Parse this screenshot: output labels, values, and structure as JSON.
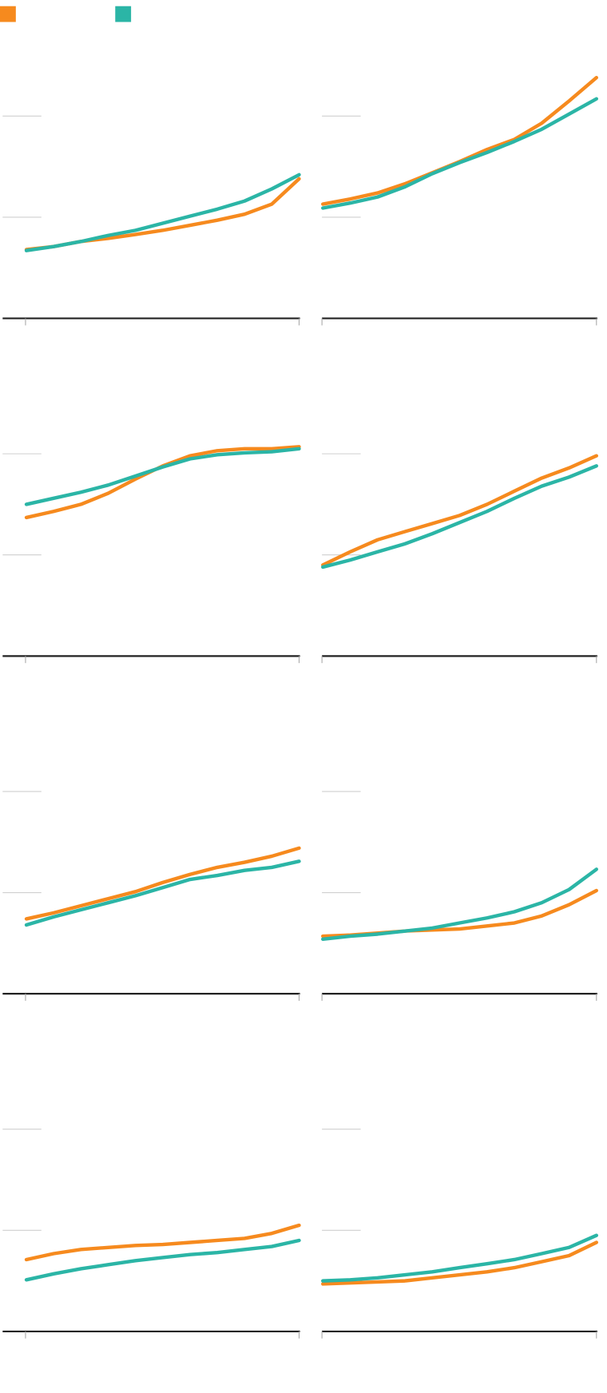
{
  "chart_data": [
    {
      "type": "line",
      "categories": [
        null,
        null,
        null,
        null,
        null,
        null,
        null,
        null,
        null,
        null,
        null
      ],
      "ylim": [
        0,
        300
      ],
      "yticks": [
        100,
        200
      ],
      "grid": true,
      "series": [
        {
          "color": "#f68a1e",
          "values": [
            68,
            71,
            76,
            79,
            83,
            87,
            92,
            97,
            103,
            113,
            138
          ]
        },
        {
          "color": "#2bb5a6",
          "values": [
            67,
            71,
            76,
            82,
            87,
            94,
            101,
            108,
            116,
            128,
            142
          ]
        }
      ]
    },
    {
      "type": "line",
      "categories": [
        null,
        null,
        null,
        null,
        null,
        null,
        null,
        null,
        null,
        null,
        null
      ],
      "ylim": [
        0,
        300
      ],
      "yticks": [
        100,
        200
      ],
      "grid": true,
      "series": [
        {
          "color": "#f68a1e",
          "values": [
            113,
            118,
            124,
            133,
            144,
            155,
            167,
            177,
            193,
            215,
            238
          ]
        },
        {
          "color": "#2bb5a6",
          "values": [
            109,
            114,
            120,
            130,
            143,
            154,
            164,
            175,
            187,
            202,
            217
          ]
        }
      ]
    },
    {
      "type": "line",
      "categories": [
        null,
        null,
        null,
        null,
        null,
        null,
        null,
        null,
        null,
        null,
        null
      ],
      "ylim": [
        0,
        300
      ],
      "yticks": [
        100,
        200
      ],
      "grid": true,
      "series": [
        {
          "color": "#f68a1e",
          "values": [
            137,
            143,
            150,
            161,
            175,
            188,
            198,
            203,
            205,
            205,
            207
          ]
        },
        {
          "color": "#2bb5a6",
          "values": [
            150,
            156,
            162,
            169,
            178,
            187,
            195,
            199,
            201,
            202,
            205
          ]
        }
      ]
    },
    {
      "type": "line",
      "categories": [
        null,
        null,
        null,
        null,
        null,
        null,
        null,
        null,
        null,
        null,
        null
      ],
      "ylim": [
        0,
        300
      ],
      "yticks": [
        100,
        200
      ],
      "grid": true,
      "series": [
        {
          "color": "#f68a1e",
          "values": [
            90,
            103,
            115,
            123,
            131,
            139,
            150,
            163,
            176,
            186,
            198
          ]
        },
        {
          "color": "#2bb5a6",
          "values": [
            88,
            95,
            103,
            111,
            121,
            132,
            143,
            156,
            168,
            177,
            188
          ]
        }
      ]
    },
    {
      "type": "line",
      "categories": [
        null,
        null,
        null,
        null,
        null,
        null,
        null,
        null,
        null,
        null,
        null
      ],
      "ylim": [
        0,
        300
      ],
      "yticks": [
        100,
        200
      ],
      "grid": true,
      "series": [
        {
          "color": "#f68a1e",
          "values": [
            74,
            80,
            87,
            94,
            101,
            110,
            118,
            125,
            130,
            136,
            144
          ]
        },
        {
          "color": "#2bb5a6",
          "values": [
            68,
            76,
            83,
            90,
            97,
            105,
            113,
            117,
            122,
            125,
            131
          ]
        }
      ]
    },
    {
      "type": "line",
      "categories": [
        null,
        null,
        null,
        null,
        null,
        null,
        null,
        null,
        null,
        null,
        null
      ],
      "ylim": [
        0,
        300
      ],
      "yticks": [
        100,
        200
      ],
      "grid": true,
      "series": [
        {
          "color": "#f68a1e",
          "values": [
            57,
            58,
            60,
            62,
            63,
            64,
            67,
            70,
            77,
            88,
            102
          ]
        },
        {
          "color": "#2bb5a6",
          "values": [
            54,
            57,
            59,
            62,
            65,
            70,
            75,
            81,
            90,
            103,
            123
          ]
        }
      ]
    },
    {
      "type": "line",
      "categories": [
        null,
        null,
        null,
        null,
        null,
        null,
        null,
        null,
        null,
        null,
        null
      ],
      "ylim": [
        0,
        300
      ],
      "yticks": [
        100,
        200
      ],
      "grid": true,
      "series": [
        {
          "color": "#f68a1e",
          "values": [
            71,
            77,
            81,
            83,
            85,
            86,
            88,
            90,
            92,
            97,
            105
          ]
        },
        {
          "color": "#2bb5a6",
          "values": [
            51,
            57,
            62,
            66,
            70,
            73,
            76,
            78,
            81,
            84,
            90
          ]
        }
      ]
    },
    {
      "type": "line",
      "categories": [
        null,
        null,
        null,
        null,
        null,
        null,
        null,
        null,
        null,
        null,
        null
      ],
      "ylim": [
        0,
        300
      ],
      "yticks": [
        100,
        200
      ],
      "grid": true,
      "series": [
        {
          "color": "#f68a1e",
          "values": [
            47,
            48,
            49,
            50,
            53,
            56,
            59,
            63,
            69,
            75,
            88
          ]
        },
        {
          "color": "#2bb5a6",
          "values": [
            50,
            51,
            53,
            56,
            59,
            63,
            67,
            71,
            77,
            83,
            95
          ]
        }
      ]
    }
  ]
}
